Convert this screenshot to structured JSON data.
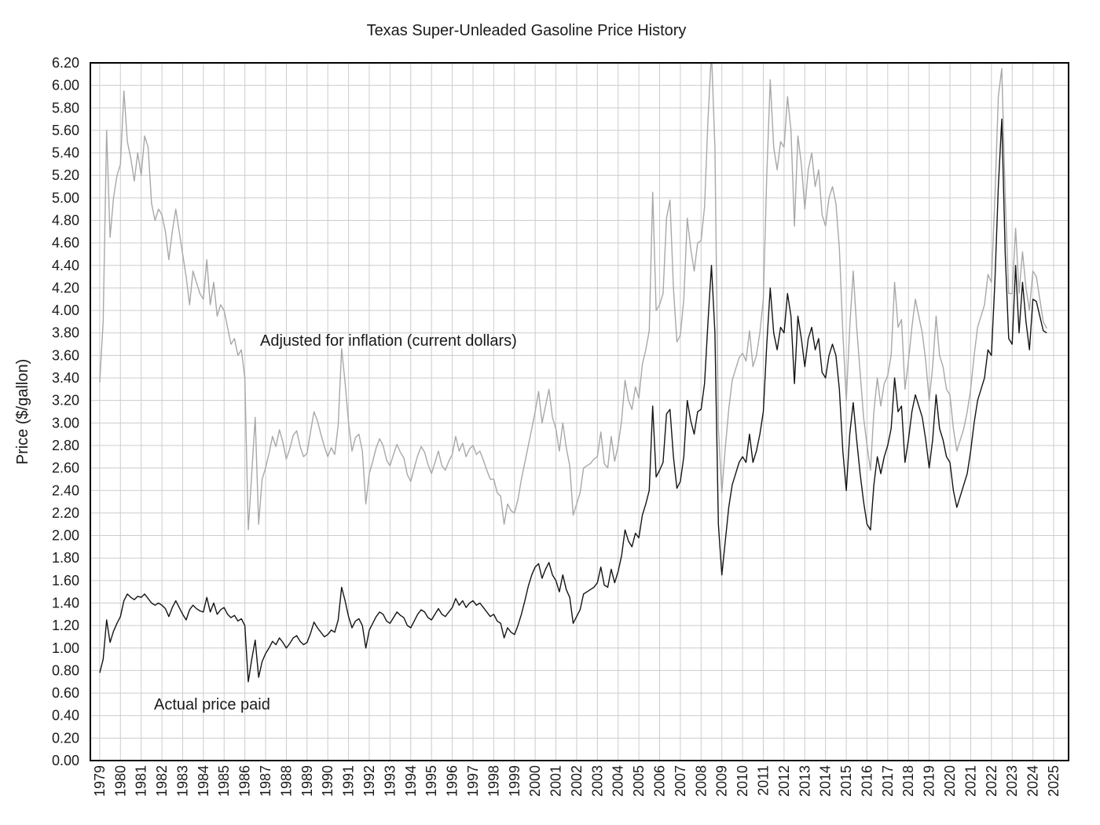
{
  "title": "Texas Super-Unleaded Gasoline Price History",
  "y_axis": {
    "label": "Price ($/gallon)",
    "min": 0.0,
    "max": 6.2,
    "tick_step": 0.2,
    "tick_format_decimals": 2
  },
  "x_axis": {
    "first_tick_year": 1979,
    "last_tick_year": 2025,
    "tick_step": 1
  },
  "annotations": {
    "adjusted_label": "Adjusted for inflation (current dollars)",
    "actual_label": "Actual price paid"
  },
  "colors": {
    "actual_series": "#141414",
    "adjusted_series": "#a8a8a8",
    "gridline": "#cccccc",
    "frame": "#000000",
    "text": "#1a1a1a",
    "background": "#ffffff"
  },
  "chart_data": {
    "type": "line",
    "title": "Texas Super-Unleaded Gasoline Price History",
    "xlabel": "",
    "ylabel": "Price ($/gallon)",
    "ylim": [
      0.0,
      6.2
    ],
    "xlim": [
      1978.55,
      2025.72
    ],
    "grid": true,
    "legend_position": "none (in-plot text annotations)",
    "x_start_year": 1979.0,
    "points_per_year": 6,
    "series": [
      {
        "name": "Adjusted for inflation (current dollars)",
        "color_key": "adjusted_series",
        "values": [
          3.36,
          3.9,
          5.6,
          4.65,
          5.0,
          5.2,
          5.3,
          5.95,
          5.5,
          5.35,
          5.15,
          5.4,
          5.2,
          5.55,
          5.45,
          4.95,
          4.8,
          4.9,
          4.85,
          4.7,
          4.45,
          4.7,
          4.9,
          4.7,
          4.5,
          4.3,
          4.05,
          4.35,
          4.25,
          4.15,
          4.1,
          4.45,
          4.05,
          4.25,
          3.95,
          4.05,
          4.0,
          3.85,
          3.7,
          3.75,
          3.6,
          3.65,
          3.4,
          2.05,
          2.55,
          3.05,
          2.1,
          2.5,
          2.6,
          2.73,
          2.88,
          2.79,
          2.94,
          2.83,
          2.68,
          2.77,
          2.89,
          2.93,
          2.79,
          2.7,
          2.73,
          2.92,
          3.1,
          3.02,
          2.9,
          2.79,
          2.7,
          2.78,
          2.72,
          2.98,
          3.66,
          3.36,
          3.0,
          2.75,
          2.87,
          2.9,
          2.75,
          2.28,
          2.55,
          2.66,
          2.78,
          2.86,
          2.8,
          2.67,
          2.62,
          2.72,
          2.81,
          2.74,
          2.69,
          2.54,
          2.48,
          2.6,
          2.71,
          2.79,
          2.74,
          2.63,
          2.55,
          2.65,
          2.75,
          2.62,
          2.58,
          2.66,
          2.72,
          2.88,
          2.75,
          2.82,
          2.7,
          2.77,
          2.8,
          2.72,
          2.75,
          2.67,
          2.58,
          2.5,
          2.5,
          2.38,
          2.35,
          2.1,
          2.28,
          2.22,
          2.2,
          2.32,
          2.5,
          2.65,
          2.8,
          2.95,
          3.1,
          3.28,
          3.0,
          3.15,
          3.3,
          3.05,
          2.95,
          2.75,
          3.0,
          2.78,
          2.62,
          2.18,
          2.28,
          2.38,
          2.6,
          2.62,
          2.64,
          2.68,
          2.7,
          2.92,
          2.64,
          2.6,
          2.88,
          2.66,
          2.8,
          3.02,
          3.38,
          3.2,
          3.12,
          3.32,
          3.22,
          3.52,
          3.65,
          3.82,
          5.05,
          4.0,
          4.05,
          4.15,
          4.82,
          4.98,
          4.2,
          3.72,
          3.78,
          4.1,
          4.82,
          4.55,
          4.35,
          4.6,
          4.62,
          4.92,
          5.7,
          6.3,
          5.45,
          2.95,
          2.38,
          2.78,
          3.12,
          3.38,
          3.48,
          3.58,
          3.62,
          3.55,
          3.82,
          3.5,
          3.6,
          3.8,
          4.1,
          5.2,
          6.05,
          5.45,
          5.25,
          5.5,
          5.45,
          5.9,
          5.6,
          4.75,
          5.55,
          5.3,
          4.9,
          5.25,
          5.4,
          5.1,
          5.25,
          4.85,
          4.75,
          5.0,
          5.1,
          4.95,
          4.55,
          3.8,
          3.2,
          3.85,
          4.35,
          3.85,
          3.45,
          3.05,
          2.8,
          2.58,
          3.1,
          3.4,
          3.15,
          3.35,
          3.42,
          3.6,
          4.25,
          3.85,
          3.92,
          3.3,
          3.55,
          3.85,
          4.1,
          3.95,
          3.8,
          3.55,
          3.2,
          3.5,
          3.95,
          3.6,
          3.5,
          3.3,
          3.25,
          2.95,
          2.75,
          2.85,
          2.95,
          3.1,
          3.3,
          3.6,
          3.85,
          3.95,
          4.05,
          4.32,
          4.25,
          5.0,
          5.9,
          6.15,
          5.0,
          4.15,
          4.15,
          4.73,
          4.15,
          4.52,
          4.2,
          4.0,
          4.35,
          4.3,
          4.1,
          3.9,
          3.84
        ]
      },
      {
        "name": "Actual price paid",
        "color_key": "actual_series",
        "values": [
          0.78,
          0.9,
          1.25,
          1.05,
          1.15,
          1.22,
          1.28,
          1.42,
          1.48,
          1.45,
          1.43,
          1.46,
          1.45,
          1.48,
          1.44,
          1.4,
          1.38,
          1.4,
          1.38,
          1.35,
          1.28,
          1.36,
          1.42,
          1.36,
          1.3,
          1.25,
          1.34,
          1.38,
          1.35,
          1.33,
          1.32,
          1.45,
          1.32,
          1.4,
          1.3,
          1.34,
          1.36,
          1.3,
          1.27,
          1.29,
          1.24,
          1.26,
          1.2,
          0.7,
          0.9,
          1.07,
          0.74,
          0.88,
          0.95,
          1.0,
          1.06,
          1.03,
          1.09,
          1.05,
          1.0,
          1.04,
          1.09,
          1.11,
          1.06,
          1.03,
          1.05,
          1.13,
          1.23,
          1.18,
          1.14,
          1.1,
          1.12,
          1.16,
          1.14,
          1.25,
          1.54,
          1.42,
          1.28,
          1.18,
          1.24,
          1.26,
          1.2,
          1.0,
          1.16,
          1.22,
          1.28,
          1.32,
          1.3,
          1.24,
          1.22,
          1.27,
          1.32,
          1.29,
          1.27,
          1.2,
          1.18,
          1.24,
          1.3,
          1.34,
          1.32,
          1.27,
          1.25,
          1.3,
          1.35,
          1.3,
          1.28,
          1.32,
          1.36,
          1.44,
          1.38,
          1.42,
          1.36,
          1.4,
          1.42,
          1.38,
          1.4,
          1.36,
          1.32,
          1.28,
          1.3,
          1.24,
          1.22,
          1.09,
          1.18,
          1.14,
          1.12,
          1.2,
          1.3,
          1.42,
          1.55,
          1.65,
          1.72,
          1.75,
          1.62,
          1.7,
          1.76,
          1.65,
          1.6,
          1.5,
          1.65,
          1.52,
          1.45,
          1.22,
          1.28,
          1.34,
          1.48,
          1.5,
          1.52,
          1.54,
          1.58,
          1.72,
          1.56,
          1.54,
          1.7,
          1.58,
          1.68,
          1.82,
          2.05,
          1.95,
          1.9,
          2.02,
          1.98,
          2.18,
          2.28,
          2.4,
          3.15,
          2.52,
          2.58,
          2.65,
          3.08,
          3.12,
          2.7,
          2.42,
          2.48,
          2.7,
          3.2,
          3.02,
          2.9,
          3.1,
          3.12,
          3.35,
          3.9,
          4.4,
          3.8,
          2.1,
          1.65,
          1.95,
          2.25,
          2.45,
          2.55,
          2.65,
          2.7,
          2.65,
          2.9,
          2.65,
          2.75,
          2.9,
          3.1,
          3.7,
          4.2,
          3.8,
          3.65,
          3.85,
          3.8,
          4.15,
          3.95,
          3.35,
          3.95,
          3.75,
          3.5,
          3.75,
          3.85,
          3.65,
          3.75,
          3.45,
          3.4,
          3.6,
          3.7,
          3.6,
          3.3,
          2.75,
          2.4,
          2.9,
          3.18,
          2.85,
          2.55,
          2.3,
          2.1,
          2.05,
          2.45,
          2.7,
          2.55,
          2.7,
          2.8,
          2.95,
          3.4,
          3.1,
          3.15,
          2.65,
          2.85,
          3.1,
          3.25,
          3.15,
          3.05,
          2.85,
          2.6,
          2.85,
          3.25,
          2.95,
          2.85,
          2.7,
          2.65,
          2.4,
          2.25,
          2.35,
          2.45,
          2.55,
          2.75,
          3.0,
          3.2,
          3.3,
          3.4,
          3.65,
          3.6,
          4.25,
          5.1,
          5.7,
          4.5,
          3.75,
          3.7,
          4.4,
          3.8,
          4.25,
          3.9,
          3.65,
          4.1,
          4.08,
          3.95,
          3.82,
          3.8
        ]
      }
    ]
  }
}
